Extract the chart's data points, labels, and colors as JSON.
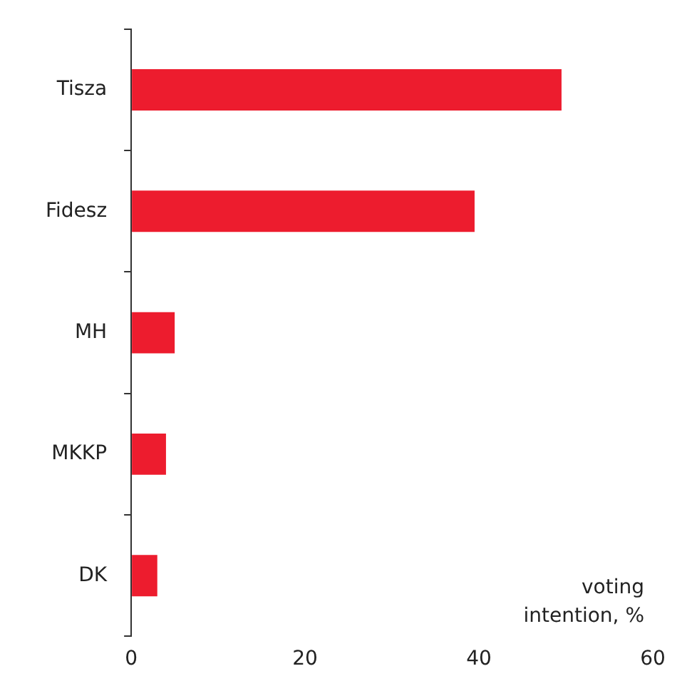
{
  "chart_data": {
    "type": "bar",
    "orientation": "horizontal",
    "categories": [
      "Tisza",
      "Fidesz",
      "MH",
      "MKKP",
      "DK"
    ],
    "values": [
      49.5,
      39.5,
      5,
      4,
      3
    ],
    "color": "#ed1c2e",
    "xlim": [
      0,
      60
    ],
    "xticks": [
      0,
      20,
      40,
      60
    ],
    "xlabel": "voting intention, %",
    "grid": false,
    "legend": false
  }
}
